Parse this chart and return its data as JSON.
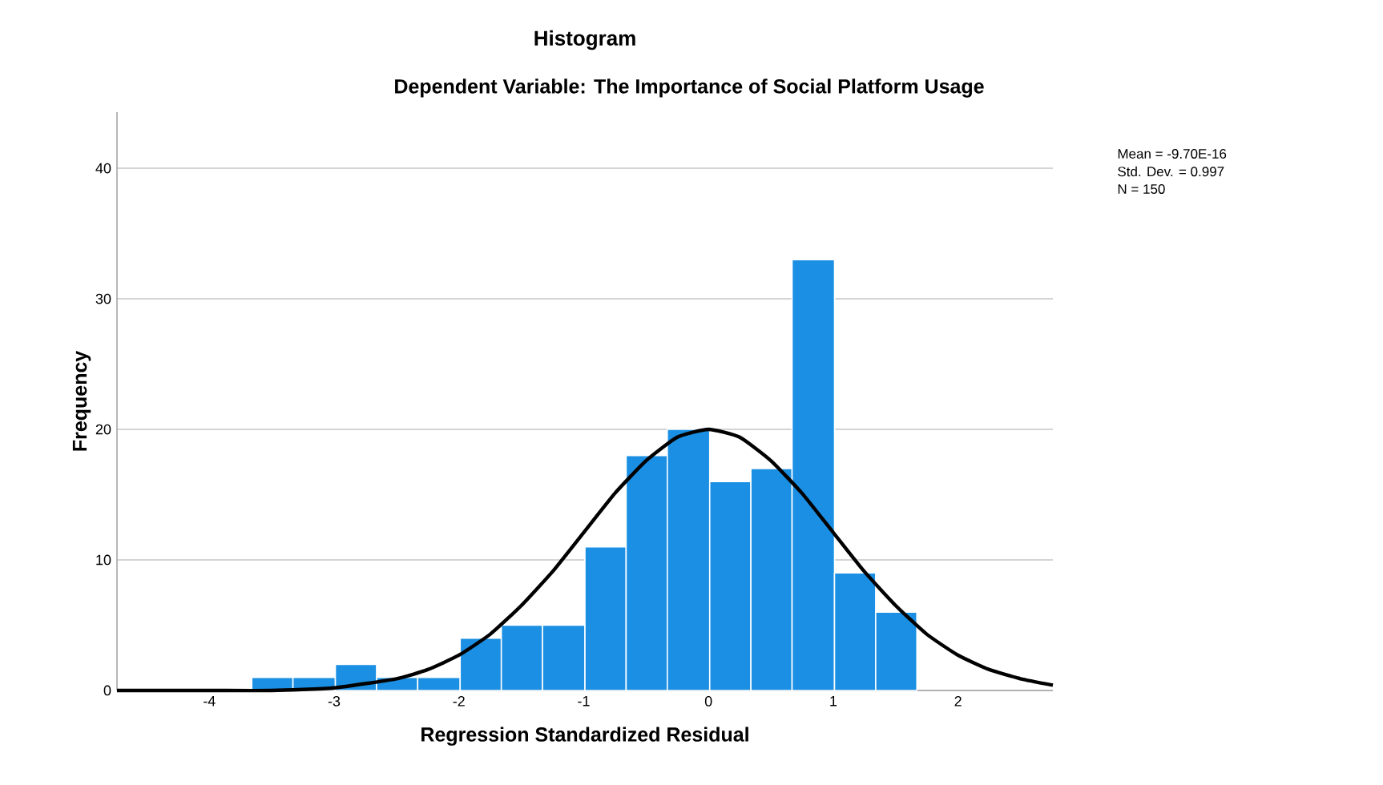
{
  "chart_data": {
    "type": "histogram",
    "title": "Histogram",
    "subtitle": "Dependent Variable: The Importance of Social Platform Usage",
    "xlabel": "Regression Standardized Residual",
    "ylabel": "Frequency",
    "bins": [
      -3.66,
      -3.33,
      -2.99,
      -2.66,
      -2.33,
      -1.99,
      -1.66,
      -1.33,
      -0.99,
      -0.66,
      -0.33,
      0.01,
      0.34,
      0.67,
      1.01,
      1.34,
      1.67
    ],
    "values": [
      1,
      1,
      2,
      1,
      1,
      4,
      5,
      5,
      11,
      18,
      20,
      16,
      17,
      33,
      9,
      6
    ],
    "color": "#1a8fe3",
    "series": [
      {
        "type": "line",
        "color": "#000000",
        "x": [
          -4.74,
          -4.0,
          -3.5,
          -3.0,
          -2.5,
          -2.25,
          -2.0,
          -1.75,
          -1.5,
          -1.25,
          -1.0,
          -0.75,
          -0.5,
          -0.25,
          0.0,
          0.25,
          0.5,
          0.75,
          1.0,
          1.25,
          1.5,
          1.75,
          2.0,
          2.25,
          2.5,
          2.76
        ],
        "values": [
          0,
          0,
          0,
          0.2,
          0.9,
          1.6,
          2.7,
          4.3,
          6.5,
          9.1,
          12.1,
          15.1,
          17.6,
          19.4,
          20,
          19.4,
          17.6,
          15.1,
          12.1,
          9.1,
          6.5,
          4.3,
          2.7,
          1.6,
          0.9,
          0.4
        ]
      }
    ],
    "xlim": [
      -4.74,
      2.76
    ],
    "ylim": [
      0,
      44.3
    ],
    "xticks": [
      -4,
      -3,
      -2,
      -1,
      0,
      1,
      2
    ],
    "yticks": [
      0,
      10,
      20,
      30,
      40
    ],
    "grid": "y",
    "annotations": [
      "Mean = -9.70E-16",
      "Std. Dev. = 0.997",
      "N = 150"
    ]
  }
}
